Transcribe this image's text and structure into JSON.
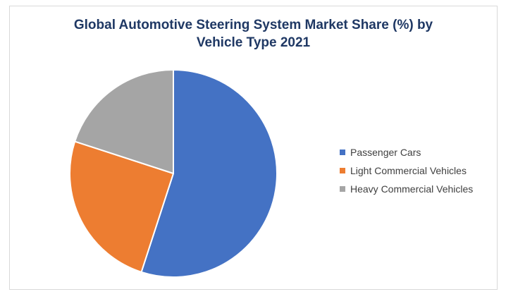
{
  "chart_data": {
    "type": "pie",
    "title_line1": "Global Automotive Steering System Market Share (%) by",
    "title_line2": "Vehicle Type 2021",
    "categories": [
      "Passenger Cars",
      "Light Commercial Vehicles",
      "Heavy Commercial Vehicles"
    ],
    "values": [
      55,
      25,
      20
    ],
    "colors": [
      "#4472c4",
      "#ed7d31",
      "#a5a5a5"
    ],
    "start_angle_deg": 0,
    "direction": "clockwise",
    "legend_position": "right"
  }
}
